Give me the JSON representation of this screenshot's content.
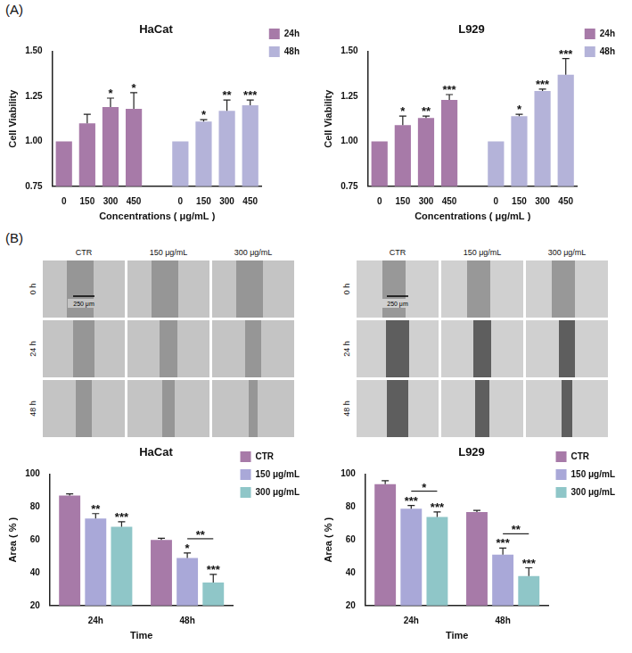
{
  "panel_labels": [
    "(A)",
    "(B)"
  ],
  "chart_data": [
    {
      "type": "bar",
      "title": "HaCat",
      "x_label": "Concentrations ( μg/mL )",
      "y_label": "Cell Viability",
      "categories": [
        "0",
        "150",
        "300",
        "450",
        null,
        "0",
        "150",
        "300",
        "450"
      ],
      "series": [
        {
          "name": "24h",
          "color": "#a77aa8",
          "values": [
            1.0,
            1.1,
            1.19,
            1.18,
            null,
            null,
            null,
            null,
            null
          ],
          "errors": [
            null,
            0.05,
            0.05,
            0.09,
            null,
            null,
            null,
            null,
            null
          ],
          "significance": [
            null,
            null,
            "*",
            "*",
            null,
            null,
            null,
            null,
            null
          ]
        },
        {
          "name": "48h",
          "color": "#b4b3d9",
          "values": [
            null,
            null,
            null,
            null,
            null,
            1.0,
            1.11,
            1.17,
            1.2
          ],
          "errors": [
            null,
            null,
            null,
            null,
            null,
            null,
            0.01,
            0.06,
            0.03
          ],
          "significance": [
            null,
            null,
            null,
            null,
            null,
            null,
            "*",
            "**",
            "***"
          ]
        }
      ],
      "ylim": [
        0.75,
        1.5
      ],
      "yticks": [
        {
          "value": 0.75,
          "label": "0.75"
        },
        {
          "value": 1.0,
          "label": "1.00"
        },
        {
          "value": 1.25,
          "label": "1.25"
        },
        {
          "value": 1.5,
          "label": "1.50"
        }
      ],
      "grid": false,
      "legend": "right"
    },
    {
      "type": "bar",
      "title": "L929",
      "x_label": "Concentrations ( μg/mL )",
      "y_label": "Cell Viability",
      "categories": [
        "0",
        "150",
        "300",
        "450",
        null,
        "0",
        "150",
        "300",
        "450"
      ],
      "series": [
        {
          "name": "24h",
          "color": "#a77aa8",
          "values": [
            1.0,
            1.09,
            1.13,
            1.23,
            null,
            null,
            null,
            null,
            null
          ],
          "errors": [
            null,
            0.05,
            0.01,
            0.03,
            null,
            null,
            null,
            null,
            null
          ],
          "significance": [
            null,
            "*",
            "**",
            "***",
            null,
            null,
            null,
            null,
            null
          ]
        },
        {
          "name": "48h",
          "color": "#b4b3d9",
          "values": [
            null,
            null,
            null,
            null,
            null,
            1.0,
            1.14,
            1.28,
            1.37
          ],
          "errors": [
            null,
            null,
            null,
            null,
            null,
            null,
            0.01,
            0.01,
            0.09
          ],
          "significance": [
            null,
            null,
            null,
            null,
            null,
            null,
            "*",
            "***",
            "***"
          ]
        }
      ],
      "ylim": [
        0.75,
        1.5
      ],
      "yticks": [
        {
          "value": 0.75,
          "label": "0.75"
        },
        {
          "value": 1.0,
          "label": "1.00"
        },
        {
          "value": 1.25,
          "label": "1.25"
        },
        {
          "value": 1.5,
          "label": "1.50"
        }
      ],
      "grid": false,
      "legend": "right"
    },
    {
      "type": "bar",
      "title": "HaCat",
      "x_label": "Time",
      "y_label": "Area ( % )",
      "categories": [
        "24h",
        "48h"
      ],
      "series": [
        {
          "name": "CTR",
          "color": "#a77aa8",
          "values": [
            87,
            60
          ],
          "errors": [
            1,
            1
          ],
          "significance": [
            null,
            null
          ]
        },
        {
          "name": "150 μg/mL",
          "color": "#a9a8d8",
          "values": [
            73,
            49
          ],
          "errors": [
            3,
            3
          ],
          "significance": [
            "**",
            "*"
          ]
        },
        {
          "name": "300 μg/mL",
          "color": "#8fc6c8",
          "values": [
            68,
            34
          ],
          "errors": [
            3,
            5
          ],
          "significance": [
            "***",
            "***"
          ]
        }
      ],
      "comparisons": [
        {
          "category": "48h",
          "between": [
            "150 μg/mL",
            "300 μg/mL"
          ],
          "label": "**"
        }
      ],
      "ylim": [
        20,
        100
      ],
      "yticks": [
        20,
        40,
        60,
        80,
        100
      ],
      "grid": false,
      "legend": "right"
    },
    {
      "type": "bar",
      "title": "L929",
      "x_label": "Time",
      "y_label": "Area ( % )",
      "categories": [
        "24h",
        "48h"
      ],
      "series": [
        {
          "name": "CTR",
          "color": "#a77aa8",
          "values": [
            94,
            77
          ],
          "errors": [
            2,
            1
          ],
          "significance": [
            null,
            null
          ]
        },
        {
          "name": "150 μg/mL",
          "color": "#a9a8d8",
          "values": [
            79,
            51
          ],
          "errors": [
            2,
            4
          ],
          "significance": [
            "***",
            "***"
          ]
        },
        {
          "name": "300 μg/mL",
          "color": "#8fc6c8",
          "values": [
            74,
            38
          ],
          "errors": [
            3,
            5
          ],
          "significance": [
            "***",
            "***"
          ]
        }
      ],
      "comparisons": [
        {
          "category": "24h",
          "between": [
            "150 μg/mL",
            "300 μg/mL"
          ],
          "label": "*"
        },
        {
          "category": "48h",
          "between": [
            "150 μg/mL",
            "300 μg/mL"
          ],
          "label": "**"
        }
      ],
      "ylim": [
        20,
        100
      ],
      "yticks": [
        20,
        40,
        60,
        80,
        100
      ],
      "grid": false,
      "legend": "right"
    }
  ],
  "images": [
    {
      "columns": [
        "CTR",
        "150 μg/mL",
        "300 μg/mL"
      ],
      "rows": [
        "0 h",
        "24 h",
        "48 h"
      ],
      "scale_bar": "250 μm"
    },
    {
      "columns": [
        "CTR",
        "150 μg/mL",
        "300 μg/mL"
      ],
      "rows": [
        "0 h",
        "24 h",
        "48 h"
      ],
      "scale_bar": "250 μm"
    }
  ]
}
